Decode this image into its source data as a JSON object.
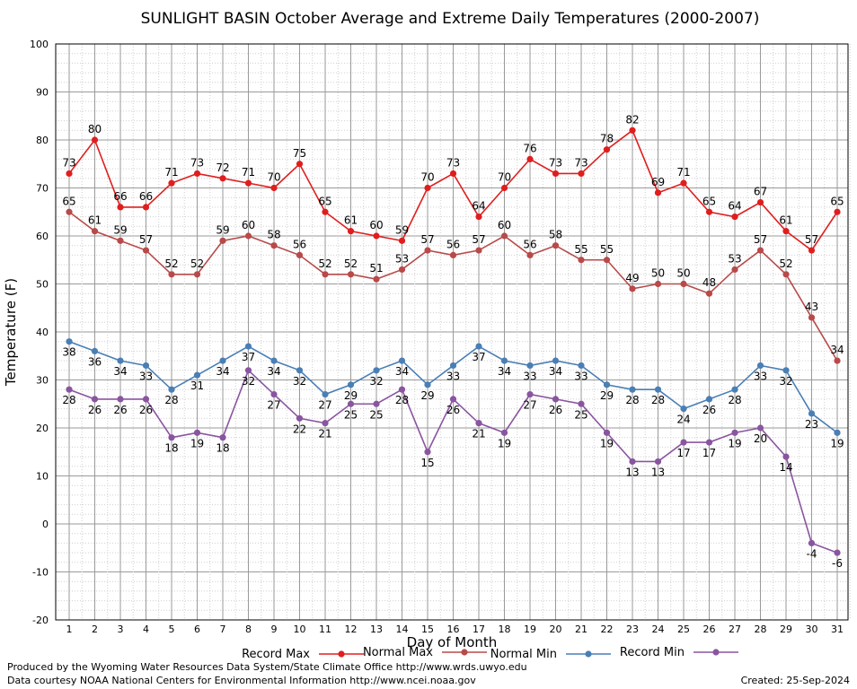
{
  "chart_data": {
    "type": "line",
    "title": "SUNLIGHT BASIN October Average and Extreme Daily Temperatures (2000-2007)",
    "xlabel": "Day of Month",
    "ylabel": "Temperature (F)",
    "ylim": [
      -20,
      100
    ],
    "yticks": [
      "100",
      "90",
      "80",
      "70",
      "60",
      "50",
      "40",
      "30",
      "20",
      "10",
      "0",
      "-10",
      "-20"
    ],
    "x": [
      1,
      2,
      3,
      4,
      5,
      6,
      7,
      8,
      9,
      10,
      11,
      12,
      13,
      14,
      15,
      16,
      17,
      18,
      19,
      20,
      21,
      22,
      23,
      24,
      25,
      26,
      27,
      28,
      29,
      30,
      31
    ],
    "grid": true,
    "legend_position": "bottom",
    "series": [
      {
        "name": "Record Max",
        "color": "#e01e1e",
        "labels": "above",
        "values": [
          73,
          80,
          66,
          66,
          71,
          73,
          72,
          71,
          70,
          75,
          65,
          61,
          60,
          59,
          70,
          73,
          64,
          70,
          76,
          73,
          73,
          78,
          82,
          69,
          71,
          65,
          64,
          67,
          61,
          57,
          65
        ]
      },
      {
        "name": "Normal Max",
        "color": "#b84a4a",
        "labels": "above",
        "values": [
          65,
          61,
          59,
          57,
          52,
          52,
          59,
          60,
          58,
          56,
          52,
          52,
          51,
          53,
          57,
          56,
          57,
          60,
          56,
          58,
          55,
          55,
          49,
          50,
          50,
          48,
          53,
          57,
          52,
          43,
          34
        ]
      },
      {
        "name": "Normal Min",
        "color": "#4a7fb5",
        "labels": "below",
        "values": [
          38,
          36,
          34,
          33,
          28,
          31,
          34,
          37,
          34,
          32,
          27,
          29,
          32,
          34,
          29,
          33,
          37,
          34,
          33,
          34,
          33,
          29,
          28,
          28,
          24,
          26,
          28,
          33,
          32,
          23,
          19
        ]
      },
      {
        "name": "Record Min",
        "color": "#8a55a0",
        "labels": "below",
        "values": [
          28,
          26,
          26,
          26,
          18,
          19,
          18,
          32,
          27,
          22,
          21,
          25,
          25,
          28,
          15,
          26,
          21,
          19,
          27,
          26,
          25,
          19,
          13,
          13,
          17,
          17,
          19,
          20,
          14,
          -4,
          -6
        ]
      }
    ]
  },
  "footer": {
    "produced_by": "Produced by the Wyoming Water Resources Data System/State Climate Office http://www.wrds.uwyo.edu",
    "courtesy": "Data courtesy NOAA National Centers for Environmental Information http://www.ncei.noaa.gov",
    "created": "Created: 25-Sep-2024"
  }
}
